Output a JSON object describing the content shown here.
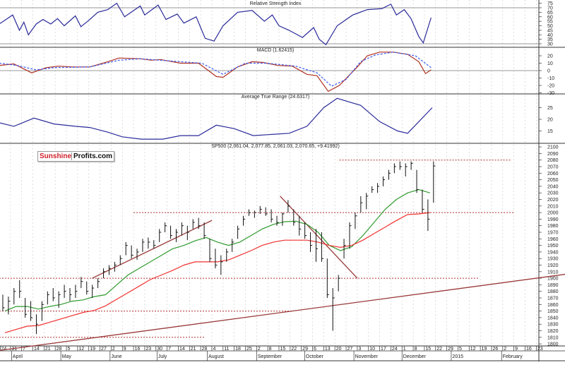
{
  "logo": {
    "part1": "Sunshine",
    "part2": "Profits.com"
  },
  "chart_data": [
    {
      "type": "line",
      "title": "Relative Strength Index",
      "ylim": [
        28,
        77
      ],
      "yticks": [
        75,
        70,
        65,
        60,
        55,
        50,
        45,
        40,
        35,
        30
      ],
      "reference_lines": [
        70,
        30
      ],
      "series": [
        {
          "name": "RSI",
          "color": "#2a2a9a",
          "points": [
            [
              0,
              52
            ],
            [
              1.2,
              62
            ],
            [
              1.8,
              45
            ],
            [
              2.2,
              54
            ],
            [
              2.6,
              40
            ],
            [
              3.3,
              52
            ],
            [
              3.9,
              57
            ],
            [
              4.6,
              52
            ],
            [
              5.2,
              58
            ],
            [
              5.8,
              50
            ],
            [
              6.8,
              61
            ],
            [
              7.3,
              49
            ],
            [
              8,
              56
            ],
            [
              8.8,
              65
            ],
            [
              9.7,
              68
            ],
            [
              10.5,
              75
            ],
            [
              11.2,
              60
            ],
            [
              12.6,
              72
            ],
            [
              13,
              62
            ],
            [
              14.2,
              73
            ],
            [
              14.9,
              57
            ],
            [
              15.9,
              63
            ],
            [
              16.5,
              53
            ],
            [
              17.6,
              60
            ],
            [
              18.1,
              45
            ],
            [
              18.4,
              36
            ],
            [
              19.2,
              33
            ],
            [
              20,
              50
            ],
            [
              21.3,
              65
            ],
            [
              22.6,
              67
            ],
            [
              23.7,
              55
            ],
            [
              24.4,
              62
            ],
            [
              25,
              50
            ],
            [
              25.9,
              45
            ],
            [
              27.1,
              37
            ],
            [
              28.1,
              48
            ],
            [
              28.6,
              35
            ],
            [
              29.2,
              29
            ],
            [
              30.2,
              50
            ],
            [
              31.6,
              62
            ],
            [
              32.9,
              68
            ],
            [
              34.2,
              69
            ],
            [
              35,
              74
            ],
            [
              35.5,
              62
            ],
            [
              36.2,
              68
            ],
            [
              36.8,
              58
            ],
            [
              37.5,
              38
            ],
            [
              37.9,
              31
            ],
            [
              38.6,
              59
            ]
          ]
        }
      ]
    },
    {
      "type": "line",
      "title": "MACD (1.62415)",
      "ylim": [
        -31,
        30
      ],
      "yticks": [
        20,
        10,
        0,
        -10,
        -20,
        -30
      ],
      "reference_lines": [
        0
      ],
      "series": [
        {
          "name": "MACD",
          "color": "#b03020",
          "dashed": false,
          "points": [
            [
              0,
              7
            ],
            [
              1.3,
              9
            ],
            [
              2.9,
              -3
            ],
            [
              4.2,
              4
            ],
            [
              5.3,
              6
            ],
            [
              6.5,
              5
            ],
            [
              8.1,
              5
            ],
            [
              9.7,
              12
            ],
            [
              10.7,
              17
            ],
            [
              12.6,
              16
            ],
            [
              13.6,
              14
            ],
            [
              14.4,
              15
            ],
            [
              16.2,
              10
            ],
            [
              17.8,
              10
            ],
            [
              18.7,
              0
            ],
            [
              19.4,
              -8
            ],
            [
              20,
              -9
            ],
            [
              21.3,
              5
            ],
            [
              22.6,
              12
            ],
            [
              23.6,
              11
            ],
            [
              24.9,
              7
            ],
            [
              26.2,
              6
            ],
            [
              27.5,
              -5
            ],
            [
              28.4,
              -7
            ],
            [
              29.4,
              -28
            ],
            [
              30.4,
              -20
            ],
            [
              32,
              5
            ],
            [
              32.9,
              20
            ],
            [
              34,
              25
            ],
            [
              35.2,
              25
            ],
            [
              36.5,
              22
            ],
            [
              37.5,
              12
            ],
            [
              38.1,
              -4
            ],
            [
              38.6,
              1
            ]
          ]
        },
        {
          "name": "Signal",
          "color": "#3a5af0",
          "dashed": true,
          "points": [
            [
              0,
              10
            ],
            [
              1.6,
              7
            ],
            [
              3.3,
              1
            ],
            [
              4.9,
              4
            ],
            [
              8.1,
              5
            ],
            [
              10.7,
              14
            ],
            [
              12.6,
              16
            ],
            [
              15.2,
              13
            ],
            [
              18.1,
              10
            ],
            [
              20,
              -5
            ],
            [
              22,
              10
            ],
            [
              23.9,
              10
            ],
            [
              26.5,
              6
            ],
            [
              28.4,
              -3
            ],
            [
              29.7,
              -21
            ],
            [
              31,
              -12
            ],
            [
              32.3,
              12
            ],
            [
              33.6,
              21
            ],
            [
              35.2,
              25
            ],
            [
              37.2,
              20
            ],
            [
              38.6,
              4
            ]
          ]
        }
      ]
    },
    {
      "type": "line",
      "title": "Average True Range (24.6317)",
      "ylim": [
        10,
        31
      ],
      "yticks": [
        25,
        20,
        15
      ],
      "series": [
        {
          "name": "ATR",
          "color": "#2a2a9a",
          "points": [
            [
              0,
              18.5
            ],
            [
              1.3,
              17
            ],
            [
              3.1,
              20.5
            ],
            [
              4.9,
              18
            ],
            [
              6.8,
              17
            ],
            [
              8.1,
              16.5
            ],
            [
              9.7,
              14.5
            ],
            [
              11,
              12.5
            ],
            [
              12.7,
              11.5
            ],
            [
              14.6,
              11.5
            ],
            [
              16.2,
              13
            ],
            [
              17.8,
              13
            ],
            [
              19.4,
              17.5
            ],
            [
              21,
              16
            ],
            [
              22.7,
              13
            ],
            [
              25.9,
              14
            ],
            [
              27.5,
              17
            ],
            [
              29,
              25
            ],
            [
              30.2,
              29
            ],
            [
              32.3,
              26
            ],
            [
              34,
              19
            ],
            [
              35.6,
              15
            ],
            [
              36.5,
              14
            ],
            [
              38.7,
              25
            ]
          ]
        }
      ]
    },
    {
      "type": "ohlc",
      "title": "SP500 (2,061.04, 2,077.85, 2,061.03, 2,070.65, +9.41992)",
      "ylim": [
        1790,
        2102
      ],
      "yticks": [
        2100,
        2090,
        2080,
        2070,
        2060,
        2050,
        2040,
        2030,
        2020,
        2010,
        2000,
        1990,
        1980,
        1970,
        1960,
        1950,
        1940,
        1930,
        1920,
        1910,
        1900,
        1890,
        1880,
        1870,
        1860,
        1850,
        1840,
        1830,
        1820,
        1810,
        1800
      ],
      "bars_per_week": 2,
      "bars_hlc": [
        [
          1875,
          1850,
          1855
        ],
        [
          1872,
          1845,
          1865
        ],
        [
          1885,
          1860,
          1880
        ],
        [
          1897,
          1870,
          1880
        ],
        [
          1870,
          1840,
          1845
        ],
        [
          1865,
          1835,
          1840
        ],
        [
          1845,
          1815,
          1830
        ],
        [
          1865,
          1835,
          1860
        ],
        [
          1880,
          1860,
          1875
        ],
        [
          1885,
          1865,
          1870
        ],
        [
          1880,
          1855,
          1875
        ],
        [
          1890,
          1870,
          1880
        ],
        [
          1885,
          1865,
          1875
        ],
        [
          1890,
          1870,
          1880
        ],
        [
          1902,
          1885,
          1895
        ],
        [
          1895,
          1875,
          1880
        ],
        [
          1890,
          1870,
          1885
        ],
        [
          1900,
          1885,
          1895
        ],
        [
          1915,
          1900,
          1910
        ],
        [
          1920,
          1905,
          1915
        ],
        [
          1925,
          1910,
          1920
        ],
        [
          1935,
          1920,
          1930
        ],
        [
          1955,
          1935,
          1950
        ],
        [
          1950,
          1930,
          1935
        ],
        [
          1945,
          1928,
          1940
        ],
        [
          1960,
          1940,
          1955
        ],
        [
          1962,
          1945,
          1955
        ],
        [
          1958,
          1945,
          1950
        ],
        [
          1975,
          1955,
          1970
        ],
        [
          1985,
          1970,
          1980
        ],
        [
          1980,
          1960,
          1965
        ],
        [
          1975,
          1955,
          1970
        ],
        [
          1985,
          1965,
          1980
        ],
        [
          1980,
          1958,
          1970
        ],
        [
          1990,
          1975,
          1985
        ],
        [
          1992,
          1975,
          1980
        ],
        [
          1985,
          1960,
          1965
        ],
        [
          1960,
          1925,
          1930
        ],
        [
          1945,
          1915,
          1920
        ],
        [
          1935,
          1905,
          1925
        ],
        [
          1945,
          1925,
          1940
        ],
        [
          1960,
          1940,
          1955
        ],
        [
          1980,
          1960,
          1975
        ],
        [
          1995,
          1980,
          1990
        ],
        [
          2005,
          1995,
          2000
        ],
        [
          2003,
          1992,
          2000
        ],
        [
          2010,
          1998,
          2005
        ],
        [
          2008,
          1995,
          1998
        ],
        [
          2005,
          1985,
          1990
        ],
        [
          1995,
          1980,
          1985
        ],
        [
          2000,
          1980,
          1998
        ],
        [
          2019,
          2000,
          2010
        ],
        [
          2005,
          1980,
          1985
        ],
        [
          1995,
          1965,
          1975
        ],
        [
          1985,
          1960,
          1965
        ],
        [
          1970,
          1940,
          1950
        ],
        [
          1975,
          1925,
          1945
        ],
        [
          1970,
          1925,
          1930
        ],
        [
          1930,
          1870,
          1875
        ],
        [
          1885,
          1820,
          1870
        ],
        [
          1905,
          1880,
          1900
        ],
        [
          1960,
          1930,
          1950
        ],
        [
          1985,
          1945,
          1980
        ],
        [
          2000,
          1975,
          1995
        ],
        [
          2025,
          2000,
          2015
        ],
        [
          2030,
          2005,
          2025
        ],
        [
          2040,
          2030,
          2035
        ],
        [
          2045,
          2030,
          2040
        ],
        [
          2055,
          2040,
          2050
        ],
        [
          2065,
          2050,
          2060
        ],
        [
          2075,
          2060,
          2070
        ],
        [
          2078,
          2065,
          2070
        ],
        [
          2075,
          2055,
          2070
        ],
        [
          2078,
          2065,
          2075
        ],
        [
          2065,
          2030,
          2035
        ],
        [
          2035,
          2000,
          2005
        ],
        [
          2020,
          1972,
          1990
        ],
        [
          2078,
          2015,
          2071
        ]
      ],
      "moving_averages": [
        {
          "name": "short MA",
          "color": "#2e9a2e",
          "weekly": [
            1850,
            1857,
            1857,
            1853,
            1857,
            1860,
            1865,
            1867,
            1872,
            1875,
            1890,
            1905,
            1915,
            1925,
            1935,
            1945,
            1950,
            1957,
            1962,
            1955,
            1950,
            1955,
            1965,
            1975,
            1982,
            1986,
            1987,
            1982,
            1970,
            1950,
            1942,
            1948,
            1965,
            1985,
            2005,
            2020,
            2030,
            2035,
            2030
          ]
        },
        {
          "name": "long MA",
          "color": "#f03030",
          "weekly": [
            1817,
            1822,
            1827,
            1828,
            1833,
            1838,
            1843,
            1848,
            1851,
            1858,
            1868,
            1878,
            1888,
            1898,
            1905,
            1912,
            1920,
            1925,
            1925,
            1925,
            1928,
            1935,
            1942,
            1950,
            1955,
            1958,
            1958,
            1958,
            1955,
            1950,
            1947,
            1950,
            1958,
            1968,
            1978,
            1988,
            1997,
            1998,
            2000
          ]
        }
      ],
      "support_resistance_levels": [
        {
          "price": 2080,
          "from_week": 30.4,
          "to_week": 45.8
        },
        {
          "price": 2000,
          "from_week": 12,
          "to_week": 46
        },
        {
          "price": 1900,
          "from_week": 0,
          "to_week": 42.8
        },
        {
          "price": 1850,
          "from_week": 0,
          "to_week": 26.2
        },
        {
          "price": 1810,
          "from_week": 0,
          "to_week": 18.4
        }
      ],
      "trendlines": [
        {
          "name": "long-term support",
          "from": [
            0,
            1790
          ],
          "to": [
            50.6,
            1906
          ]
        },
        {
          "name": "rising channel",
          "from": [
            8.3,
            1900
          ],
          "to": [
            19,
            1988
          ]
        },
        {
          "name": "declining resistance",
          "from": [
            25.1,
            2025
          ],
          "to": [
            32,
            1900
          ]
        }
      ]
    }
  ],
  "x_axis": {
    "week_labels": [
      "24",
      "31",
      "7",
      "14",
      "21",
      "28",
      "5",
      "12",
      "19",
      "27",
      "2",
      "9",
      "16",
      "23",
      "30",
      "7",
      "14",
      "21",
      "28",
      "4",
      "11",
      "18",
      "25",
      "2",
      "8",
      "15",
      "22",
      "29",
      "6",
      "13",
      "20",
      "27",
      "3",
      "10",
      "17",
      "24",
      "1",
      "8",
      "15",
      "22",
      "29",
      "5",
      "12",
      "19",
      "26",
      "2",
      "9",
      "16",
      "23"
    ],
    "months": [
      {
        "label": "April",
        "week": 1.1
      },
      {
        "label": "May",
        "week": 5.5
      },
      {
        "label": "June",
        "week": 9.9
      },
      {
        "label": "July",
        "week": 14.1
      },
      {
        "label": "August",
        "week": 18.6
      },
      {
        "label": "September",
        "week": 23.0
      },
      {
        "label": "October",
        "week": 27.3
      },
      {
        "label": "November",
        "week": 31.7
      },
      {
        "label": "December",
        "week": 36.0
      },
      {
        "label": "2015",
        "week": 40.4
      },
      {
        "label": "February",
        "week": 44.9
      }
    ]
  }
}
